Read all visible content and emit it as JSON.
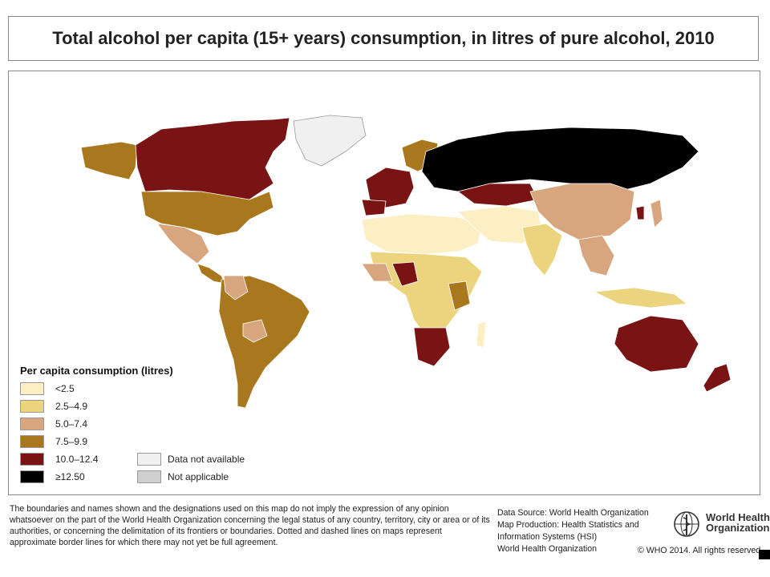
{
  "title": "Total alcohol per capita (15+ years) consumption, in litres of pure alcohol, 2010",
  "legend": {
    "title": "Per capita consumption (litres)",
    "items": [
      {
        "label": "<2.5",
        "color": "#fcefc4"
      },
      {
        "label": "2.5–4.9",
        "color": "#ecd47e"
      },
      {
        "label": "5.0–7.4",
        "color": "#d7a57e"
      },
      {
        "label": "7.5–9.9",
        "color": "#a9781e"
      },
      {
        "label": "10.0–12.4",
        "color": "#7a1414"
      },
      {
        "label": "≥12.50",
        "color": "#000000"
      },
      {
        "label": "Data not available",
        "color": "#f0f0f0"
      },
      {
        "label": "Not applicable",
        "color": "#cfcfcf"
      }
    ]
  },
  "disclaimer": "The boundaries and names shown and the designations used on this map do not imply the expression of any opinion whatsoever on the part of the World Health Organization concerning the legal status of any country, territory, city or area or of its authorities, or concerning the delimitation of its frontiers or boundaries. Dotted and dashed lines on maps represent approximate border lines for which there may not yet be full agreement.",
  "source_lines": [
    "Data Source: World Health Organization",
    "Map Production: Health Statistics and",
    "Information Systems (HSI)",
    "World Health Organization"
  ],
  "logo": {
    "line1": "World Health",
    "line2": "Organization"
  },
  "copyright": "© WHO 2014. All rights reserved"
}
